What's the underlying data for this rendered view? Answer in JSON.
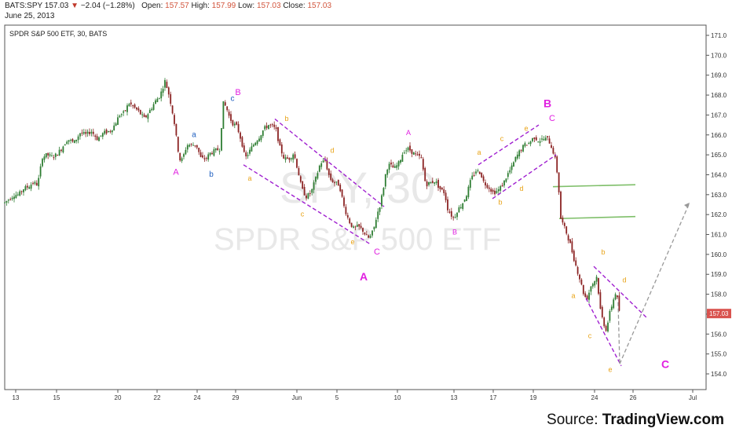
{
  "header": {
    "symbol": "BATS:SPY",
    "price": "157.03",
    "change": "−2.04 (−1.28%)",
    "open_label": "Open:",
    "open": "157.57",
    "high_label": "High:",
    "high": "157.99",
    "low_label": "Low:",
    "low": "157.03",
    "close_label": "Close:",
    "close": "157.03",
    "date": "June 25, 2013"
  },
  "chart_title": "SPDR S&P 500 ETF, 30, BATS",
  "watermark_line1": "SPY, 30",
  "watermark_line2": "SPDR S&P 500 ETF",
  "source": {
    "prefix": "Source: ",
    "brand": "TradingView.com"
  },
  "colors": {
    "up": "#2e7d32",
    "down": "#8b2323",
    "annotation_major": "#e020e0",
    "annotation_orange": "#e8a317",
    "annotation_blue": "#2060c0",
    "channel": "#a020d0",
    "support": "#7fbf6a",
    "projection": "#999999",
    "price_tag": "#d9534f"
  },
  "chart_data": {
    "type": "candlestick",
    "title": "SPDR S&P 500 ETF, 30, BATS",
    "ylim": [
      153.5,
      171.5
    ],
    "y_ticks": [
      154.0,
      155.0,
      156.0,
      157.0,
      158.0,
      159.0,
      160.0,
      161.0,
      162.0,
      163.0,
      164.0,
      165.0,
      166.0,
      167.0,
      168.0,
      169.0,
      170.0,
      171.0
    ],
    "x_tick_labels": [
      "13",
      "15",
      "20",
      "22",
      "24",
      "29",
      "Jun",
      "5",
      "10",
      "13",
      "17",
      "19",
      "24",
      "26",
      "Jul"
    ],
    "last_price_tag": "157.03",
    "price_path": [
      [
        0,
        162.6
      ],
      [
        6,
        162.8
      ],
      [
        12,
        163.0
      ],
      [
        18,
        163.0
      ],
      [
        24,
        163.3
      ],
      [
        30,
        163.4
      ],
      [
        36,
        163.6
      ],
      [
        42,
        163.5
      ],
      [
        48,
        164.9
      ],
      [
        54,
        165.0
      ],
      [
        60,
        164.9
      ],
      [
        66,
        165.0
      ],
      [
        72,
        165.3
      ],
      [
        80,
        165.8
      ],
      [
        88,
        165.6
      ],
      [
        96,
        166.1
      ],
      [
        104,
        166.0
      ],
      [
        110,
        166.2
      ],
      [
        118,
        165.8
      ],
      [
        126,
        166.1
      ],
      [
        134,
        166.2
      ],
      [
        140,
        166.5
      ],
      [
        146,
        167.0
      ],
      [
        152,
        167.1
      ],
      [
        158,
        167.6
      ],
      [
        164,
        167.4
      ],
      [
        170,
        167.2
      ],
      [
        178,
        166.8
      ],
      [
        186,
        167.3
      ],
      [
        192,
        167.7
      ],
      [
        198,
        168.0
      ],
      [
        204,
        168.7
      ],
      [
        208,
        168.2
      ],
      [
        212,
        167.5
      ],
      [
        216,
        166.6
      ],
      [
        220,
        165.4
      ],
      [
        224,
        164.6
      ],
      [
        228,
        165.0
      ],
      [
        232,
        165.5
      ],
      [
        238,
        165.5
      ],
      [
        244,
        165.5
      ],
      [
        250,
        164.8
      ],
      [
        256,
        164.8
      ],
      [
        262,
        165.1
      ],
      [
        268,
        165.2
      ],
      [
        274,
        165.3
      ],
      [
        278,
        167.6
      ],
      [
        282,
        167.4
      ],
      [
        286,
        166.9
      ],
      [
        290,
        166.6
      ],
      [
        296,
        166.4
      ],
      [
        302,
        165.6
      ],
      [
        306,
        164.8
      ],
      [
        312,
        165.2
      ],
      [
        318,
        165.6
      ],
      [
        324,
        165.9
      ],
      [
        330,
        166.3
      ],
      [
        336,
        166.5
      ],
      [
        342,
        166.4
      ],
      [
        346,
        166.2
      ],
      [
        350,
        165.4
      ],
      [
        356,
        164.8
      ],
      [
        362,
        164.8
      ],
      [
        368,
        165.1
      ],
      [
        374,
        164.1
      ],
      [
        378,
        163.3
      ],
      [
        384,
        162.9
      ],
      [
        390,
        163.1
      ],
      [
        396,
        163.8
      ],
      [
        402,
        164.6
      ],
      [
        408,
        164.7
      ],
      [
        414,
        163.8
      ],
      [
        420,
        163.6
      ],
      [
        426,
        163.5
      ],
      [
        432,
        162.4
      ],
      [
        438,
        161.7
      ],
      [
        444,
        161.3
      ],
      [
        450,
        161.4
      ],
      [
        456,
        161.2
      ],
      [
        462,
        160.8
      ],
      [
        466,
        160.9
      ],
      [
        470,
        161.3
      ],
      [
        474,
        162.0
      ],
      [
        478,
        162.5
      ],
      [
        482,
        163.3
      ],
      [
        486,
        164.3
      ],
      [
        490,
        164.5
      ],
      [
        496,
        164.3
      ],
      [
        502,
        164.6
      ],
      [
        508,
        165.2
      ],
      [
        514,
        165.3
      ],
      [
        520,
        165.1
      ],
      [
        526,
        164.9
      ],
      [
        530,
        164.9
      ],
      [
        536,
        163.5
      ],
      [
        542,
        163.6
      ],
      [
        548,
        163.7
      ],
      [
        554,
        163.3
      ],
      [
        560,
        163.1
      ],
      [
        564,
        162.3
      ],
      [
        568,
        162.0
      ],
      [
        572,
        161.8
      ],
      [
        576,
        162.2
      ],
      [
        582,
        162.5
      ],
      [
        588,
        163.0
      ],
      [
        594,
        163.8
      ],
      [
        600,
        164.2
      ],
      [
        606,
        164.1
      ],
      [
        610,
        163.6
      ],
      [
        616,
        163.4
      ],
      [
        622,
        163.1
      ],
      [
        628,
        163.2
      ],
      [
        634,
        163.5
      ],
      [
        640,
        164.0
      ],
      [
        646,
        164.4
      ],
      [
        650,
        164.8
      ],
      [
        656,
        165.2
      ],
      [
        662,
        165.5
      ],
      [
        668,
        165.6
      ],
      [
        674,
        165.9
      ],
      [
        680,
        165.7
      ],
      [
        686,
        165.8
      ],
      [
        692,
        165.8
      ],
      [
        698,
        165.2
      ],
      [
        702,
        164.6
      ],
      [
        705,
        163.5
      ],
      [
        708,
        161.8
      ],
      [
        712,
        161.4
      ],
      [
        716,
        161.0
      ],
      [
        720,
        160.5
      ],
      [
        726,
        159.6
      ],
      [
        732,
        158.8
      ],
      [
        738,
        157.9
      ],
      [
        742,
        157.8
      ],
      [
        746,
        158.4
      ],
      [
        750,
        158.6
      ],
      [
        754,
        158.9
      ],
      [
        758,
        157.3
      ],
      [
        762,
        156.6
      ],
      [
        766,
        156.2
      ],
      [
        770,
        157.0
      ],
      [
        774,
        157.6
      ],
      [
        778,
        158.1
      ],
      [
        781,
        157.6
      ],
      [
        783,
        157.0
      ]
    ],
    "annotations": [
      {
        "text": "A",
        "x": 218,
        "y": 164.0,
        "color": "major",
        "size": 11
      },
      {
        "text": "a",
        "x": 241,
        "y": 165.9,
        "color": "blue",
        "size": 10
      },
      {
        "text": "b",
        "x": 263,
        "y": 163.9,
        "color": "blue",
        "size": 10
      },
      {
        "text": "c",
        "x": 290,
        "y": 167.7,
        "color": "blue",
        "size": 10
      },
      {
        "text": "B",
        "x": 297,
        "y": 168.0,
        "color": "major",
        "size": 11
      },
      {
        "text": "a",
        "x": 312,
        "y": 163.7,
        "color": "orange",
        "size": 9
      },
      {
        "text": "b",
        "x": 359,
        "y": 166.7,
        "color": "orange",
        "size": 9
      },
      {
        "text": "c",
        "x": 379,
        "y": 161.9,
        "color": "orange",
        "size": 9
      },
      {
        "text": "d",
        "x": 417,
        "y": 165.1,
        "color": "orange",
        "size": 9
      },
      {
        "text": "e",
        "x": 443,
        "y": 160.5,
        "color": "orange",
        "size": 9
      },
      {
        "text": "C",
        "x": 474,
        "y": 160.0,
        "color": "major",
        "size": 11
      },
      {
        "text": "A",
        "x": 457,
        "y": 158.7,
        "color": "major",
        "size": 14,
        "bold": true
      },
      {
        "text": "A",
        "x": 514,
        "y": 166.0,
        "color": "major",
        "size": 9
      },
      {
        "text": "B",
        "x": 573,
        "y": 161.0,
        "color": "major",
        "size": 9
      },
      {
        "text": "a",
        "x": 604,
        "y": 165.0,
        "color": "orange",
        "size": 9
      },
      {
        "text": "b",
        "x": 631,
        "y": 162.5,
        "color": "orange",
        "size": 9
      },
      {
        "text": "c",
        "x": 633,
        "y": 165.7,
        "color": "orange",
        "size": 9
      },
      {
        "text": "d",
        "x": 658,
        "y": 163.2,
        "color": "orange",
        "size": 9
      },
      {
        "text": "e",
        "x": 664,
        "y": 166.2,
        "color": "orange",
        "size": 9
      },
      {
        "text": "B",
        "x": 691,
        "y": 167.4,
        "color": "major",
        "size": 14,
        "bold": true
      },
      {
        "text": "C",
        "x": 697,
        "y": 166.7,
        "color": "major",
        "size": 11
      },
      {
        "text": "a",
        "x": 724,
        "y": 157.8,
        "color": "orange",
        "size": 9
      },
      {
        "text": "b",
        "x": 762,
        "y": 160.0,
        "color": "orange",
        "size": 9
      },
      {
        "text": "c",
        "x": 745,
        "y": 155.8,
        "color": "orange",
        "size": 9
      },
      {
        "text": "d",
        "x": 789,
        "y": 158.6,
        "color": "orange",
        "size": 9
      },
      {
        "text": "e",
        "x": 771,
        "y": 154.1,
        "color": "orange",
        "size": 9
      },
      {
        "text": "C",
        "x": 841,
        "y": 154.3,
        "color": "major",
        "size": 14,
        "bold": true
      }
    ],
    "channels": [
      {
        "x1": 344,
        "y1": 166.8,
        "x2": 483,
        "y2": 162.4
      },
      {
        "x1": 304,
        "y1": 164.5,
        "x2": 466,
        "y2": 160.5
      },
      {
        "x1": 603,
        "y1": 164.5,
        "x2": 680,
        "y2": 166.5
      },
      {
        "x1": 621,
        "y1": 162.8,
        "x2": 702,
        "y2": 165.0
      },
      {
        "x1": 750,
        "y1": 159.4,
        "x2": 818,
        "y2": 156.8
      },
      {
        "x1": 740,
        "y1": 157.8,
        "x2": 785,
        "y2": 154.4
      }
    ],
    "support_lines": [
      {
        "x1": 698,
        "y1": 163.4,
        "x2": 803,
        "y2": 163.5
      },
      {
        "x1": 706,
        "y1": 161.8,
        "x2": 803,
        "y2": 161.9
      }
    ],
    "projection": [
      {
        "x1": 781,
        "y1": 157.6,
        "x2": 783,
        "y2": 154.5
      },
      {
        "x1": 783,
        "y1": 154.5,
        "x2": 872,
        "y2": 162.6
      }
    ]
  }
}
